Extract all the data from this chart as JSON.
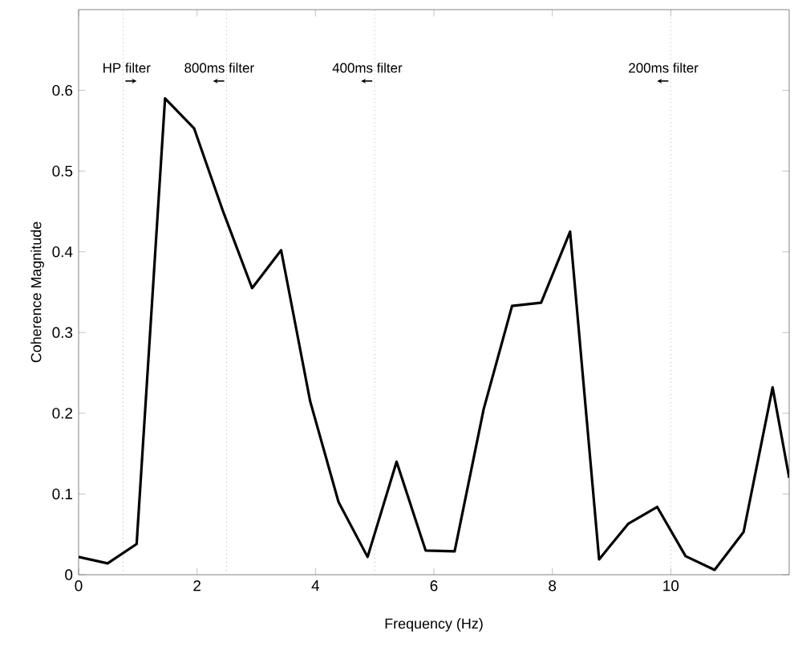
{
  "chart_data": {
    "type": "line",
    "xlabel": "Frequency (Hz)",
    "ylabel": "Coherence Magnitude",
    "x": [
      0,
      0.49,
      0.98,
      1.46,
      1.95,
      2.44,
      2.93,
      3.42,
      3.91,
      4.39,
      4.88,
      5.37,
      5.86,
      6.35,
      6.84,
      7.32,
      7.81,
      8.3,
      8.79,
      9.28,
      9.77,
      10.25,
      10.74,
      11.23,
      11.72,
      12
    ],
    "series": [
      {
        "color": "#000000",
        "values": [
          0.022,
          0.014,
          0.038,
          0.59,
          0.553,
          0.45,
          0.355,
          0.402,
          0.215,
          0.09,
          0.022,
          0.14,
          0.03,
          0.029,
          0.205,
          0.333,
          0.337,
          0.425,
          0.019,
          0.063,
          0.084,
          0.023,
          0.006,
          0.053,
          0.232,
          0.12
        ]
      }
    ],
    "xlim": [
      0,
      12
    ],
    "ylim": [
      0,
      0.7
    ],
    "xticks": [
      0,
      2,
      4,
      6,
      8,
      10
    ],
    "yticks": [
      0,
      0.1,
      0.2,
      0.3,
      0.4,
      0.5,
      0.6
    ],
    "ref_lines": [
      {
        "axis": "x",
        "value": 0.75,
        "label": "HP filter",
        "color": "#b0b0b0",
        "line_style": "dotted"
      },
      {
        "axis": "x",
        "value": 2.5,
        "label": "800ms filter",
        "color": "#b0b0b0",
        "line_style": "dotted"
      },
      {
        "axis": "x",
        "value": 5,
        "label": "400ms filter",
        "color": "#b0b0b0",
        "line_style": "dotted"
      },
      {
        "axis": "x",
        "value": 10,
        "label": "200ms filter",
        "color": "#b0b0b0",
        "line_style": "dotted"
      }
    ],
    "grid": false,
    "marker": "none",
    "line_style": "solid"
  }
}
